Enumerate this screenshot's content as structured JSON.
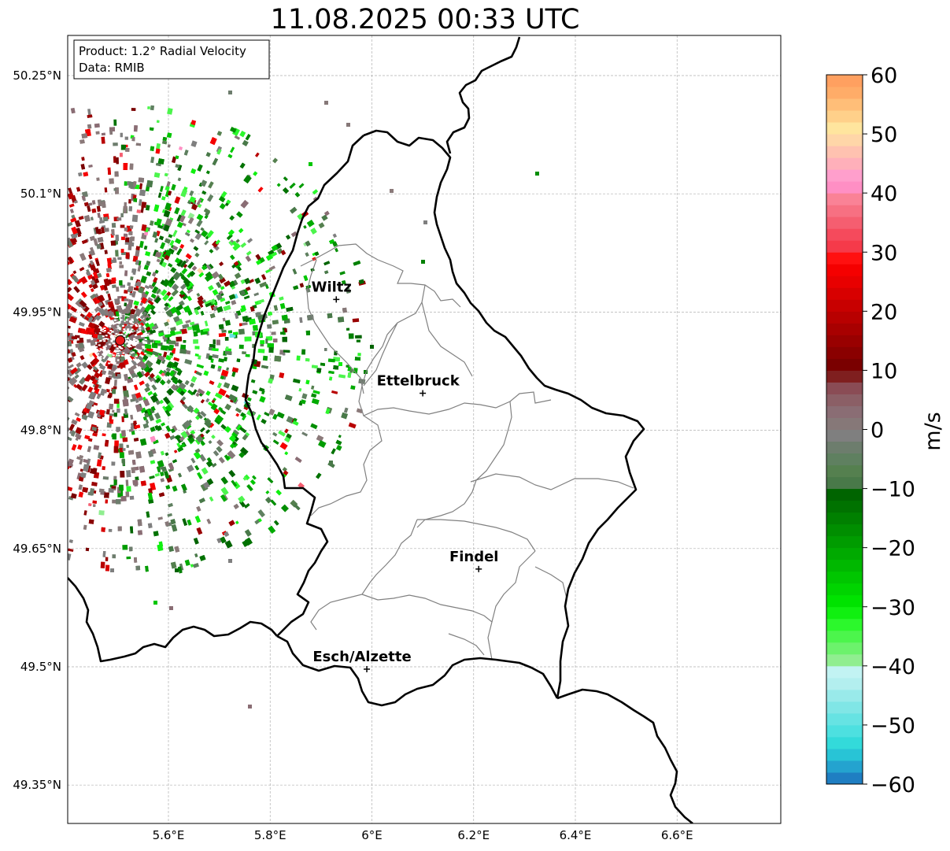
{
  "title": "11.08.2025 00:33 UTC",
  "info_box": {
    "product": "Product: 1.2° Radial Velocity",
    "data_source": "Data: RMIB"
  },
  "map": {
    "lat_ticks": [
      {
        "value": 50.25,
        "label": "50.25°N"
      },
      {
        "value": 50.1,
        "label": "50.1°N"
      },
      {
        "value": 49.95,
        "label": "49.95°N"
      },
      {
        "value": 49.8,
        "label": "49.8°N"
      },
      {
        "value": 49.65,
        "label": "49.65°N"
      },
      {
        "value": 49.5,
        "label": "49.5°N"
      },
      {
        "value": 49.35,
        "label": "49.35°N"
      }
    ],
    "lon_ticks": [
      {
        "value": 5.6,
        "label": "5.6°E"
      },
      {
        "value": 5.8,
        "label": "5.8°E"
      },
      {
        "value": 6.0,
        "label": "6°E"
      },
      {
        "value": 6.2,
        "label": "6.2°E"
      },
      {
        "value": 6.4,
        "label": "6.4°E"
      },
      {
        "value": 6.6,
        "label": "6.6°E"
      }
    ],
    "cities": [
      {
        "name": "Wiltz",
        "lon": 5.93,
        "lat": 49.966
      },
      {
        "name": "Ettelbruck",
        "lon": 6.1,
        "lat": 49.847
      },
      {
        "name": "Findel",
        "lon": 6.21,
        "lat": 49.624
      },
      {
        "name": "Esch/Alzette",
        "lon": 5.99,
        "lat": 49.497
      }
    ],
    "radar_site": {
      "lon": 5.505,
      "lat": 49.914
    },
    "colors": {
      "border": "#000000",
      "cantons": "#808080",
      "grid": "#b0b0b0",
      "radar_site": "#e8191a"
    }
  },
  "colorbar": {
    "unit": "m/s",
    "min": -60,
    "max": 60,
    "ticks": [
      {
        "value": 60,
        "label": "60"
      },
      {
        "value": 50,
        "label": "50"
      },
      {
        "value": 40,
        "label": "40"
      },
      {
        "value": 30,
        "label": "30"
      },
      {
        "value": 20,
        "label": "20"
      },
      {
        "value": 10,
        "label": "10"
      },
      {
        "value": 0,
        "label": "0"
      },
      {
        "value": -10,
        "label": "−10"
      },
      {
        "value": -20,
        "label": "−20"
      },
      {
        "value": -30,
        "label": "−30"
      },
      {
        "value": -40,
        "label": "−40"
      },
      {
        "value": -50,
        "label": "−50"
      },
      {
        "value": -60,
        "label": "−60"
      }
    ],
    "colors_bottom_to_top": [
      "#1f7ec2",
      "#24a3cf",
      "#28c4d6",
      "#33dada",
      "#4de0e0",
      "#66e3e3",
      "#80e6e6",
      "#99eaea",
      "#b3efef",
      "#c2f3f3",
      "#90ee90",
      "#6cf26c",
      "#4cf54c",
      "#2cf82c",
      "#10f010",
      "#00e300",
      "#00d400",
      "#00c600",
      "#00b800",
      "#00aa00",
      "#009c00",
      "#008e00",
      "#008000",
      "#007200",
      "#006400",
      "#497949",
      "#55804f",
      "#5f8060",
      "#6d7d6d",
      "#7f7f7f",
      "#867878",
      "#8a6d74",
      "#8b5f66",
      "#8a4c55",
      "#7f1f1f",
      "#7a0000",
      "#8a0000",
      "#990000",
      "#a80000",
      "#b80000",
      "#c80000",
      "#d80000",
      "#e80000",
      "#f50000",
      "#ff1010",
      "#f53a4a",
      "#f54a5c",
      "#f55e70",
      "#f77082",
      "#fa8296",
      "#ff8fc4",
      "#ff9fcc",
      "#ffb0ba",
      "#ffc2b0",
      "#ffd6a8",
      "#ffe59e",
      "#ffd08a",
      "#ffbe78",
      "#ffac68",
      "#ffa060"
    ]
  }
}
